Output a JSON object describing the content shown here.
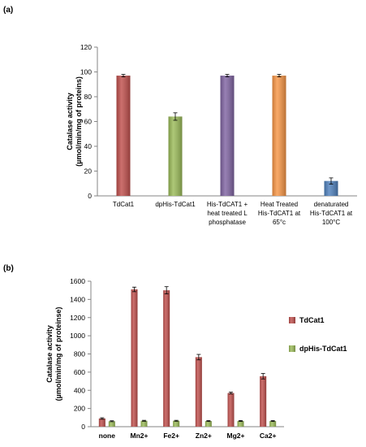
{
  "panels": {
    "a": {
      "label": "(a)"
    },
    "b": {
      "label": "(b)"
    }
  },
  "chart_data": [
    {
      "type": "bar",
      "ylabel_lines": [
        "Catalase activity",
        "(µmol/min/mg of proteins)"
      ],
      "ylim": [
        0,
        120
      ],
      "yticks": [
        0,
        20,
        40,
        60,
        80,
        100,
        120
      ],
      "grid": false,
      "categories": [
        [
          "TdCat1"
        ],
        [
          "dpHis-TdCat1"
        ],
        [
          "His-TdCAT1 +",
          "heat treated L",
          "phosphatase"
        ],
        [
          "Heat Treated",
          "His-TdCAT1 at",
          "65°c"
        ],
        [
          "denaturated",
          "His-TdCAT1 at",
          "100°C"
        ]
      ],
      "values": [
        97,
        64,
        97,
        97,
        12
      ],
      "errors": [
        1,
        3,
        1,
        1,
        2.5
      ],
      "colors": [
        "#c0504d",
        "#9bbb59",
        "#8064a2",
        "#f79646",
        "#4f81bd"
      ]
    },
    {
      "type": "bar",
      "ylabel_lines": [
        "Catalase activity",
        "(µmol/min/mg of proteinse)"
      ],
      "ylim": [
        0,
        1600
      ],
      "yticks": [
        0,
        200,
        400,
        600,
        800,
        1000,
        1200,
        1400,
        1600
      ],
      "grid": false,
      "legend_position": "right",
      "categories": [
        "none",
        "Mn2+",
        "Fe2+",
        "Zn2+",
        "Mg2+",
        "Ca2+"
      ],
      "series": [
        {
          "name": "TdCat1",
          "color": "#c0504d",
          "values": [
            90,
            1510,
            1500,
            765,
            370,
            555
          ],
          "errors": [
            8,
            25,
            40,
            30,
            10,
            30
          ]
        },
        {
          "name": "dpHis-TdCat1",
          "color": "#9bbb59",
          "values": [
            60,
            65,
            65,
            62,
            63,
            62
          ],
          "errors": [
            5,
            5,
            5,
            5,
            5,
            5
          ]
        }
      ]
    }
  ]
}
